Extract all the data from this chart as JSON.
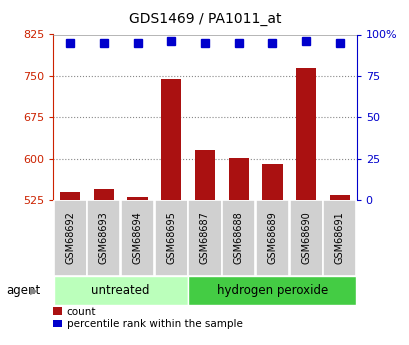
{
  "title": "GDS1469 / PA1011_at",
  "samples": [
    "GSM68692",
    "GSM68693",
    "GSM68694",
    "GSM68695",
    "GSM68687",
    "GSM68688",
    "GSM68689",
    "GSM68690",
    "GSM68691"
  ],
  "counts": [
    540,
    545,
    530,
    745,
    615,
    602,
    590,
    765,
    535
  ],
  "percentiles": [
    95,
    95,
    95,
    96,
    95,
    95,
    95,
    96,
    95
  ],
  "groups": [
    {
      "label": "untreated",
      "indices": [
        0,
        1,
        2,
        3
      ]
    },
    {
      "label": "hydrogen peroxide",
      "indices": [
        4,
        5,
        6,
        7,
        8
      ]
    }
  ],
  "ylim_left": [
    525,
    825
  ],
  "ylim_right": [
    0,
    100
  ],
  "yticks_left": [
    525,
    600,
    675,
    750,
    825
  ],
  "yticks_right": [
    0,
    25,
    50,
    75,
    100
  ],
  "yticklabels_right": [
    "0",
    "25",
    "50",
    "75",
    "100%"
  ],
  "bar_color": "#aa1111",
  "dot_color": "#0000cc",
  "group_color_untreated": "#bbffbb",
  "group_color_peroxide": "#44cc44",
  "sample_box_color": "#d0d0d0",
  "left_axis_color": "#cc2200",
  "right_axis_color": "#0000cc",
  "grid_color": "#888888",
  "legend_count_color": "#aa1111",
  "legend_pct_color": "#0000cc",
  "agent_label": "agent",
  "legend_count_label": "count",
  "legend_pct_label": "percentile rank within the sample",
  "bg_color": "#ffffff"
}
